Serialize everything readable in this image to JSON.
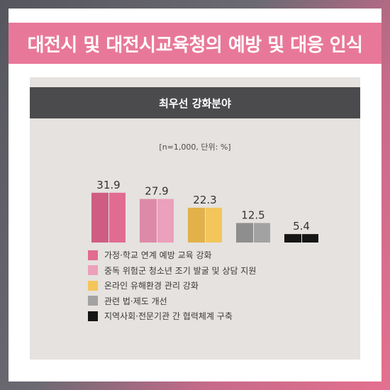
{
  "page": {
    "title": "대전시 및 대전시교육청의 예방 및 대응 인식"
  },
  "chart_data": {
    "type": "bar",
    "title": "최우선 강화분야",
    "subtitle": "[n=1,000, 단위: %]",
    "categories": [
      "가정·학교 연계 예방 교육 강화",
      "중독 위험군 청소년 조기 발굴 및 상담 지원",
      "온라인 유해환경 관리 강화",
      "관련 법·제도 개선",
      "지역사회·전문기관 간 협력체계 구축"
    ],
    "values": [
      31.9,
      27.9,
      22.3,
      12.5,
      5.4
    ],
    "labels": [
      "31.9",
      "27.9",
      "22.3",
      "12.5",
      "5.4"
    ],
    "colors": [
      "#e06c92",
      "#eba0bb",
      "#f3c55b",
      "#a2a2a2",
      "#161616"
    ],
    "colors_dark": [
      "#cf5d83",
      "#dd8aa9",
      "#e2b14a",
      "#8e8e8e",
      "#161616"
    ],
    "ylim": [
      0,
      35
    ],
    "legend_position": "bottom-left",
    "grid": false
  }
}
